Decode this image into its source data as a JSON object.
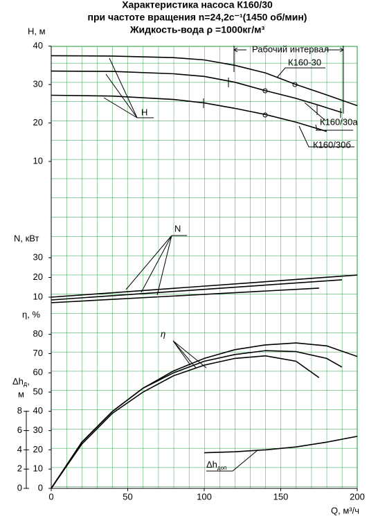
{
  "title": [
    "Характеристика насоса К160/30",
    "при частоте вращения n=24,2с⁻¹(1450 об/мин)",
    "Жидкость-вода ρ =1000кг/м³"
  ],
  "chart_data": [
    {
      "type": "line",
      "ylabel": "Н, м",
      "ylim": [
        10,
        40
      ],
      "yticks": [
        10,
        20,
        30,
        40
      ],
      "annotation": "Н",
      "interval_label": "Рабочий интервал",
      "series": [
        {
          "name": "К160-30",
          "color": "#000000",
          "x": [
            0,
            40,
            80,
            100,
            120,
            140,
            160,
            180,
            200
          ],
          "values": [
            37.5,
            37.4,
            37,
            36.4,
            35,
            33,
            30,
            27.3,
            24.5
          ]
        },
        {
          "name": "К160/30а",
          "color": "#000000",
          "x": [
            0,
            40,
            80,
            100,
            120,
            140,
            160,
            175,
            190
          ],
          "values": [
            33.5,
            33.4,
            32.8,
            32.1,
            30.6,
            28.4,
            26.4,
            24.6,
            22.7
          ]
        },
        {
          "name": "К160/30б",
          "color": "#000000",
          "x": [
            0,
            40,
            80,
            100,
            120,
            140,
            160,
            180
          ],
          "values": [
            27.2,
            27,
            26.1,
            25.2,
            23.8,
            22.2,
            20.2,
            17.8
          ]
        }
      ]
    },
    {
      "type": "line",
      "ylabel": "N, кВт",
      "ylim": [
        10,
        30
      ],
      "yticks": [
        10,
        20,
        30
      ],
      "annotation": "N",
      "series": [
        {
          "color": "#000000",
          "x": [
            0,
            200
          ],
          "values": [
            10,
            21.2
          ]
        },
        {
          "color": "#000000",
          "x": [
            0,
            190
          ],
          "values": [
            8.6,
            18.8
          ]
        },
        {
          "color": "#000000",
          "x": [
            0,
            175
          ],
          "values": [
            7.2,
            14.6
          ]
        }
      ]
    },
    {
      "type": "line",
      "ylabel": "η, %",
      "ylim": [
        0,
        80
      ],
      "yticks": [
        0,
        10,
        20,
        30,
        40,
        50,
        60,
        70,
        80
      ],
      "annotation": "η",
      "xlim": [
        0,
        200
      ],
      "xticks": [
        0,
        50,
        100,
        150,
        200
      ],
      "xlabel": "Q, м³/ч",
      "grid": true,
      "series": [
        {
          "color": "#000000",
          "x": [
            0,
            20,
            40,
            60,
            80,
            100,
            120,
            140,
            160,
            180,
            200
          ],
          "values": [
            0,
            24,
            40,
            52,
            61,
            67.5,
            72,
            74.5,
            75.5,
            74,
            68.5
          ]
        },
        {
          "color": "#000000",
          "x": [
            0,
            20,
            40,
            60,
            80,
            100,
            120,
            140,
            160,
            180,
            190
          ],
          "values": [
            0,
            24,
            40,
            52,
            60,
            66,
            69.5,
            71.5,
            71,
            67.5,
            63
          ]
        },
        {
          "color": "#000000",
          "x": [
            0,
            20,
            40,
            60,
            80,
            100,
            120,
            140,
            160,
            175
          ],
          "values": [
            0,
            23,
            39,
            50,
            58.5,
            64,
            67.5,
            68.8,
            66,
            57.5
          ]
        }
      ]
    },
    {
      "type": "line",
      "ylabel_parts": [
        "Δh",
        "д",
        ","
      ],
      "ylabel_unit": "м",
      "ylim": [
        0,
        8
      ],
      "yticks": [
        0,
        2,
        4,
        6,
        8
      ],
      "annotation_parts": [
        "Δh",
        "доп"
      ],
      "series": [
        {
          "color": "#000000",
          "x": [
            100,
            120,
            140,
            160,
            180,
            200
          ],
          "values": [
            3.7,
            3.8,
            4.0,
            4.3,
            4.8,
            5.4
          ]
        }
      ]
    }
  ]
}
